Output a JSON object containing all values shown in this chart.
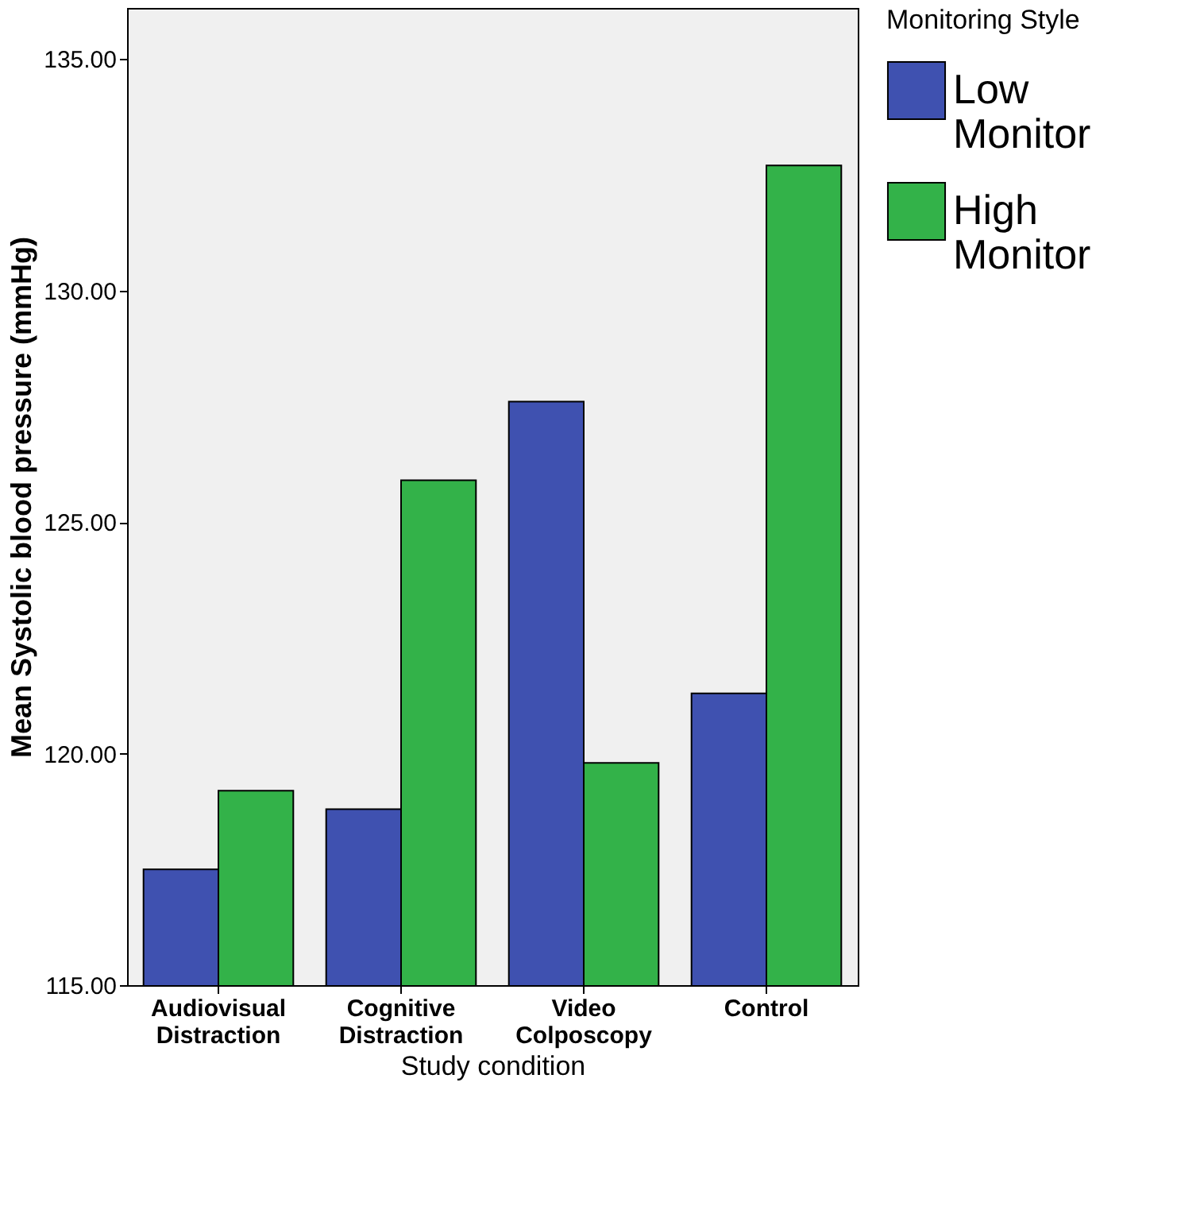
{
  "chart_data": {
    "type": "bar",
    "xlabel": "Study condition",
    "ylabel": "Mean Systolic blood pressure (mmHg)",
    "legend_title": "Monitoring Style",
    "categories": [
      "Audiovisual Distraction",
      "Cognitive Distraction",
      "Video Colposcopy",
      "Control"
    ],
    "series": [
      {
        "name": "Low Monitor",
        "color": "#3f51b0",
        "values": [
          117.5,
          118.8,
          127.6,
          121.3
        ]
      },
      {
        "name": "High Monitor",
        "color": "#33b249",
        "values": [
          119.2,
          125.9,
          119.8,
          132.7
        ]
      }
    ],
    "ylim": [
      115,
      136.1
    ],
    "yticks": [
      {
        "value": 115,
        "label": "115.00"
      },
      {
        "value": 120,
        "label": "120.00"
      },
      {
        "value": 125,
        "label": "125.00"
      },
      {
        "value": 130,
        "label": "130.00"
      },
      {
        "value": 135,
        "label": "135.00"
      }
    ],
    "grid": false,
    "legend": "top right"
  }
}
